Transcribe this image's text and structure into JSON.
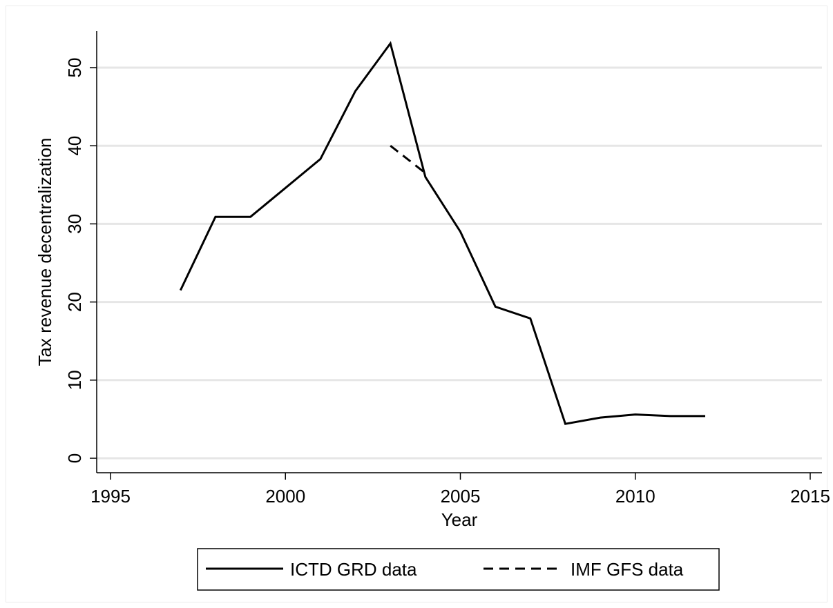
{
  "chart_data": {
    "type": "line",
    "title": "",
    "xlabel": "Year",
    "ylabel": "Tax revenue decentralization",
    "xlim": [
      1995,
      2015
    ],
    "ylim": [
      0,
      55
    ],
    "xticks": [
      1995,
      2000,
      2005,
      2010,
      2015
    ],
    "yticks": [
      0,
      10,
      20,
      30,
      40,
      50
    ],
    "grid": "horizontal",
    "legend_position": "bottom",
    "series": [
      {
        "name": "ICTD GRD data",
        "style": "solid",
        "color": "#000000",
        "x": [
          1997,
          1998,
          1999,
          2000,
          2001,
          2002,
          2003,
          2004,
          2005,
          2006,
          2007,
          2008,
          2009,
          2010,
          2011,
          2012
        ],
        "y": [
          21.5,
          30.9,
          30.9,
          34.6,
          38.3,
          47.0,
          53.1,
          36.0,
          29.0,
          19.4,
          17.9,
          4.4,
          5.2,
          5.6,
          5.4,
          5.4
        ]
      },
      {
        "name": "IMF GFS data",
        "style": "dashed",
        "color": "#000000",
        "x": [
          2003,
          2004
        ],
        "y": [
          40.0,
          36.5
        ]
      }
    ]
  }
}
